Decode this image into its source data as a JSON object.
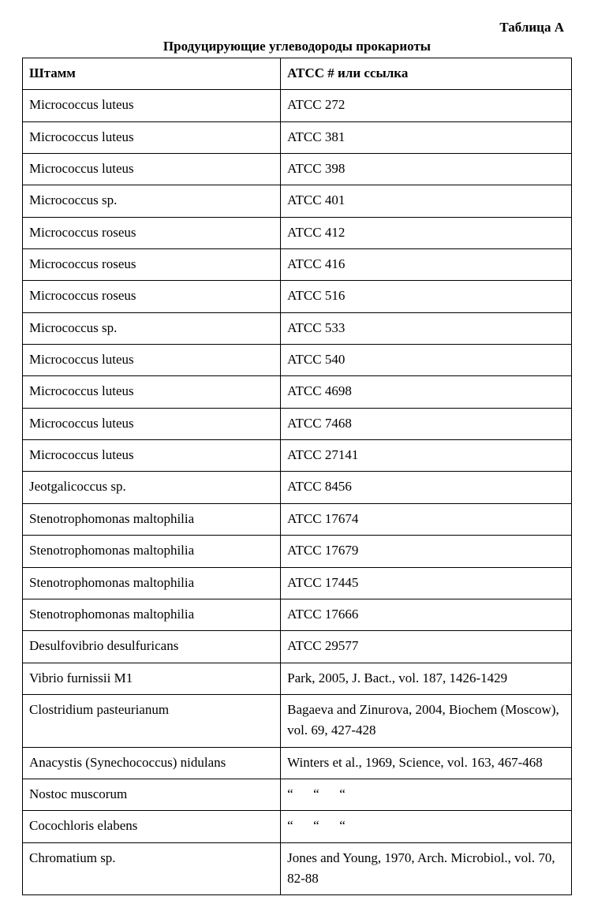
{
  "heading": {
    "table_label": "Таблица A",
    "caption": "Продуцирующие углеводороды прокариоты"
  },
  "table": {
    "columns": [
      "Штамм",
      "ATCC #   или ссылка"
    ],
    "rows": [
      [
        "Micrococcus luteus",
        "ATCC 272"
      ],
      [
        "Micrococcus luteus",
        "ATCC 381"
      ],
      [
        "Micrococcus luteus",
        "ATCC 398"
      ],
      [
        "Micrococcus sp.",
        "ATCC 401"
      ],
      [
        "Micrococcus roseus",
        "ATCC 412"
      ],
      [
        "Micrococcus roseus",
        "ATCC 416"
      ],
      [
        "Micrococcus roseus",
        "ATCC 516"
      ],
      [
        "Micrococcus sp.",
        "ATCC 533"
      ],
      [
        "Micrococcus luteus",
        "ATCC 540"
      ],
      [
        "Micrococcus luteus",
        "ATCC 4698"
      ],
      [
        "Micrococcus luteus",
        "ATCC 7468"
      ],
      [
        "Micrococcus luteus",
        "ATCC 27141"
      ],
      [
        "Jeotgalicoccus sp.",
        "ATCC 8456"
      ],
      [
        "Stenotrophomonas maltophilia",
        "ATCC 17674"
      ],
      [
        "Stenotrophomonas maltophilia",
        "ATCC 17679"
      ],
      [
        "Stenotrophomonas maltophilia",
        "ATCC 17445"
      ],
      [
        "Stenotrophomonas maltophilia",
        "ATCC 17666"
      ],
      [
        "Desulfovibrio desulfuricans",
        "ATCC 29577"
      ],
      [
        "Vibrio furnissii M1",
        "Park, 2005, J. Bact., vol. 187, 1426-1429"
      ],
      [
        "Clostridium pasteurianum",
        "Bagaeva and Zinurova, 2004, Biochem (Moscow), vol. 69, 427-428"
      ],
      [
        "Anacystis (Synechococcus) nidulans",
        "Winters et al., 1969, Science, vol. 163, 467-468"
      ],
      [
        "Nostoc muscorum",
        "“      “      “"
      ],
      [
        "Cocochloris elabens",
        "“      “      “"
      ],
      [
        "Chromatium sp.",
        "Jones and Young, 1970, Arch. Microbiol., vol. 70, 82-88"
      ]
    ]
  }
}
